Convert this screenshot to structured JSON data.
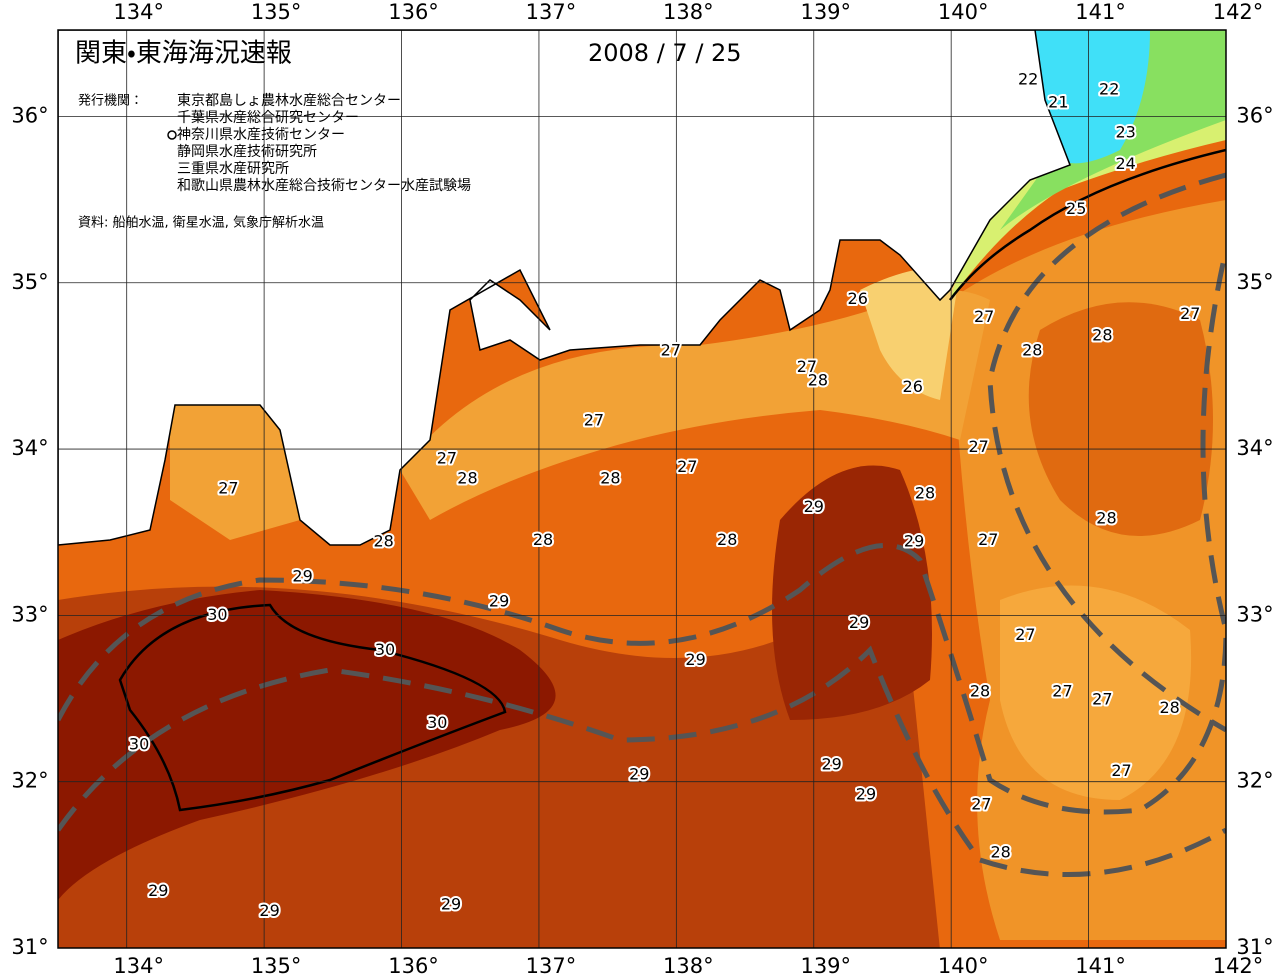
{
  "map": {
    "title": "関東・東海海況速報",
    "date": "2008 / 7 / 25",
    "issuer_heading": "発行機関：",
    "issuers": [
      "東京都島しょ農林水産総合センター",
      "千葉県水産総合研究センター",
      "神奈川県水産技術センター",
      "静岡県水産技術研究所",
      "三重県水産研究所",
      "和歌山県農林水産総合技術センター水産試験場"
    ],
    "source": "資料: 船舶水温, 衛星水温, 気象庁解析水温",
    "xlim": [
      133.5,
      142
    ],
    "ylim": [
      31,
      36.52
    ],
    "lon_ticks": [
      {
        "value": 134,
        "label": "134°"
      },
      {
        "value": 135,
        "label": "135°"
      },
      {
        "value": 136,
        "label": "136°"
      },
      {
        "value": 137,
        "label": "137°"
      },
      {
        "value": 138,
        "label": "138°"
      },
      {
        "value": 139,
        "label": "139°"
      },
      {
        "value": 140,
        "label": "140°"
      },
      {
        "value": 141,
        "label": "141°"
      },
      {
        "value": 142,
        "label": "142°"
      }
    ],
    "lat_ticks": [
      {
        "value": 31,
        "label": "31°"
      },
      {
        "value": 32,
        "label": "32°"
      },
      {
        "value": 33,
        "label": "33°"
      },
      {
        "value": 34,
        "label": "34°"
      },
      {
        "value": 35,
        "label": "35°"
      },
      {
        "value": 36,
        "label": "36°"
      }
    ],
    "contour_labels": [
      {
        "value": 22,
        "lon": 140.56,
        "lat": 36.22
      },
      {
        "value": 21,
        "lon": 140.78,
        "lat": 36.08
      },
      {
        "value": 22,
        "lon": 141.15,
        "lat": 36.16
      },
      {
        "value": 23,
        "lon": 141.27,
        "lat": 35.9
      },
      {
        "value": 24,
        "lon": 141.27,
        "lat": 35.71
      },
      {
        "value": 25,
        "lon": 140.91,
        "lat": 35.44
      },
      {
        "value": 26,
        "lon": 139.32,
        "lat": 34.9
      },
      {
        "value": 27,
        "lon": 140.24,
        "lat": 34.79
      },
      {
        "value": 27,
        "lon": 141.74,
        "lat": 34.81
      },
      {
        "value": 28,
        "lon": 140.59,
        "lat": 34.59
      },
      {
        "value": 28,
        "lon": 141.1,
        "lat": 34.68
      },
      {
        "value": 27,
        "lon": 137.96,
        "lat": 34.59
      },
      {
        "value": 27,
        "lon": 138.95,
        "lat": 34.49
      },
      {
        "value": 28,
        "lon": 139.03,
        "lat": 34.41
      },
      {
        "value": 26,
        "lon": 139.72,
        "lat": 34.37
      },
      {
        "value": 27,
        "lon": 137.4,
        "lat": 34.17
      },
      {
        "value": 27,
        "lon": 140.2,
        "lat": 34.01
      },
      {
        "value": 27,
        "lon": 136.33,
        "lat": 33.94
      },
      {
        "value": 28,
        "lon": 136.48,
        "lat": 33.82
      },
      {
        "value": 27,
        "lon": 134.74,
        "lat": 33.76
      },
      {
        "value": 28,
        "lon": 137.52,
        "lat": 33.82
      },
      {
        "value": 27,
        "lon": 138.08,
        "lat": 33.89
      },
      {
        "value": 28,
        "lon": 139.81,
        "lat": 33.73
      },
      {
        "value": 29,
        "lon": 139.0,
        "lat": 33.65
      },
      {
        "value": 28,
        "lon": 141.13,
        "lat": 33.58
      },
      {
        "value": 28,
        "lon": 135.87,
        "lat": 33.44
      },
      {
        "value": 28,
        "lon": 137.03,
        "lat": 33.45
      },
      {
        "value": 28,
        "lon": 138.37,
        "lat": 33.45
      },
      {
        "value": 29,
        "lon": 139.73,
        "lat": 33.44
      },
      {
        "value": 27,
        "lon": 140.27,
        "lat": 33.45
      },
      {
        "value": 29,
        "lon": 135.28,
        "lat": 33.23
      },
      {
        "value": 29,
        "lon": 136.71,
        "lat": 33.08
      },
      {
        "value": 30,
        "lon": 134.66,
        "lat": 33.0
      },
      {
        "value": 29,
        "lon": 139.33,
        "lat": 32.95
      },
      {
        "value": 27,
        "lon": 140.54,
        "lat": 32.88
      },
      {
        "value": 30,
        "lon": 135.88,
        "lat": 32.79
      },
      {
        "value": 29,
        "lon": 138.14,
        "lat": 32.73
      },
      {
        "value": 28,
        "lon": 140.21,
        "lat": 32.54
      },
      {
        "value": 27,
        "lon": 140.81,
        "lat": 32.54
      },
      {
        "value": 27,
        "lon": 141.1,
        "lat": 32.49
      },
      {
        "value": 28,
        "lon": 141.59,
        "lat": 32.44
      },
      {
        "value": 30,
        "lon": 136.26,
        "lat": 32.35
      },
      {
        "value": 30,
        "lon": 134.09,
        "lat": 32.22
      },
      {
        "value": 29,
        "lon": 139.13,
        "lat": 32.1
      },
      {
        "value": 29,
        "lon": 137.73,
        "lat": 32.04
      },
      {
        "value": 27,
        "lon": 141.24,
        "lat": 32.06
      },
      {
        "value": 29,
        "lon": 139.38,
        "lat": 31.92
      },
      {
        "value": 27,
        "lon": 140.22,
        "lat": 31.86
      },
      {
        "value": 28,
        "lon": 140.36,
        "lat": 31.57
      },
      {
        "value": 29,
        "lon": 134.23,
        "lat": 31.34
      },
      {
        "value": 29,
        "lon": 135.04,
        "lat": 31.22
      },
      {
        "value": 29,
        "lon": 136.36,
        "lat": 31.26
      }
    ]
  }
}
